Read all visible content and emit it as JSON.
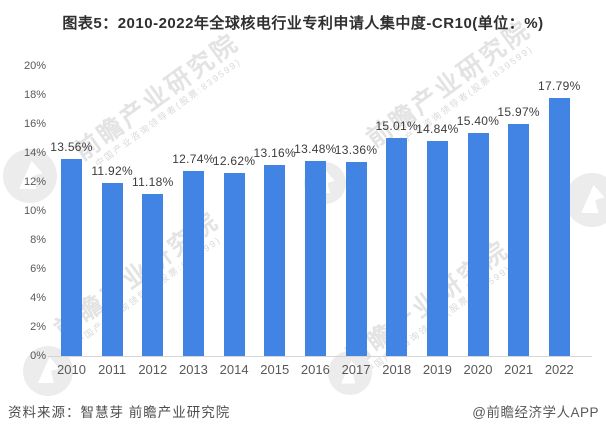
{
  "chart_data": {
    "type": "bar",
    "title": "图表5：2010-2022年全球核电行业专利申请人集中度-CR10(单位：%)",
    "categories": [
      "2010",
      "2011",
      "2012",
      "2013",
      "2014",
      "2015",
      "2016",
      "2017",
      "2018",
      "2019",
      "2020",
      "2021",
      "2022"
    ],
    "values": [
      13.56,
      11.92,
      11.18,
      12.74,
      12.62,
      13.16,
      13.48,
      13.36,
      15.01,
      14.84,
      15.4,
      15.97,
      17.79
    ],
    "value_labels": [
      "13.56%",
      "11.92%",
      "11.18%",
      "12.74%",
      "12.62%",
      "13.16%",
      "13.48%",
      "13.36%",
      "15.01%",
      "14.84%",
      "15.40%",
      "15.97%",
      "17.79%"
    ],
    "xlabel": "",
    "ylabel": "",
    "ylim": [
      0,
      20
    ],
    "ytick_labels": [
      "0%",
      "2%",
      "4%",
      "6%",
      "8%",
      "10%",
      "12%",
      "14%",
      "16%",
      "18%",
      "20%"
    ],
    "grid": false,
    "legend": false,
    "bar_color": "#4284E3"
  },
  "footer": {
    "source": "资料来源：智慧芽 前瞻产业研究院",
    "credit": "@前瞻经济学人APP"
  },
  "watermark": {
    "main": "前瞻产业研究院",
    "sub": "中国产业咨询领导者(股票:839599)",
    "text_color": "#e3e3e3",
    "logo_color": "#ececec"
  }
}
